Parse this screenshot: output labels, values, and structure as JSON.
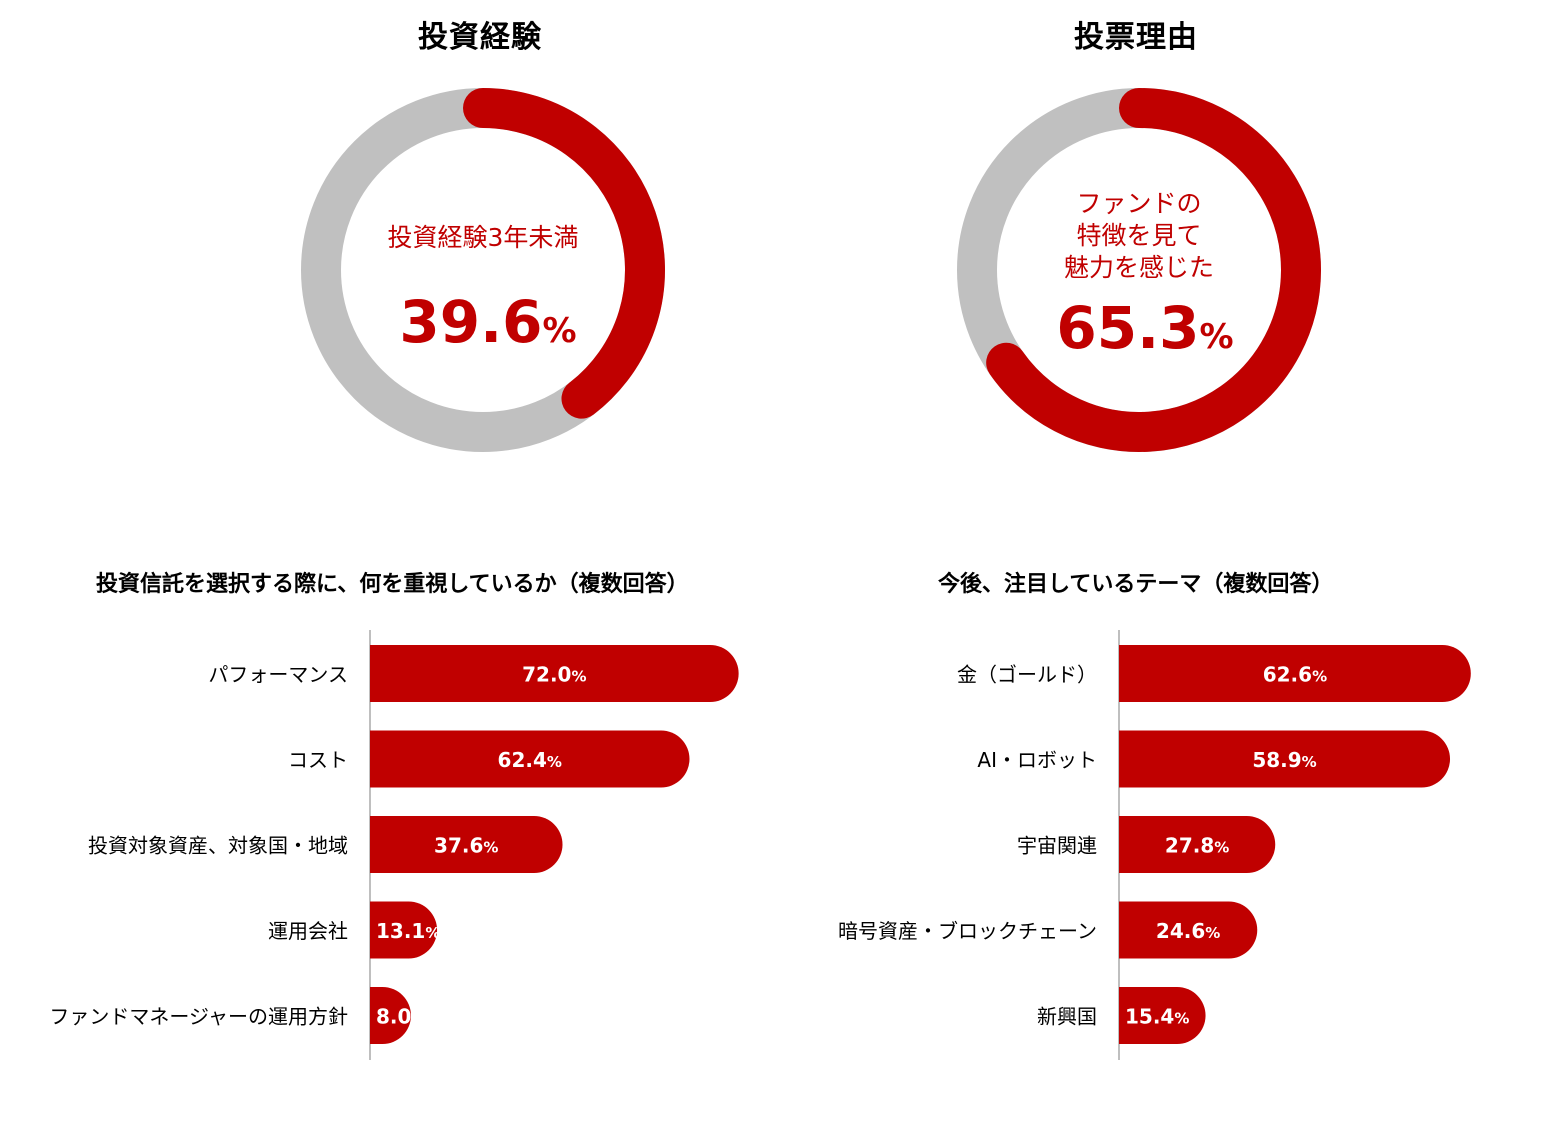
{
  "colors": {
    "accent": "#c00000",
    "remainder": "#c0c0c0",
    "axis": "#bfbfbf",
    "bar_text": "#ffffff"
  },
  "chart_data": [
    {
      "type": "pie",
      "variant": "donut",
      "title": "投資経験",
      "center_label": "投資経験3年未満",
      "value_text": "39.6",
      "unit": "%",
      "slices": [
        {
          "label": "投資経験3年未満",
          "value": 39.6,
          "color": "#c00000"
        },
        {
          "label": "",
          "value": 60.4,
          "color": "#c0c0c0"
        }
      ]
    },
    {
      "type": "pie",
      "variant": "donut",
      "title": "投票理由",
      "center_label": "ファンドの\n特徴を見て\n魅力を感じた",
      "value_text": "65.3",
      "unit": "%",
      "slices": [
        {
          "label": "ファンドの特徴を見て魅力を感じた",
          "value": 65.3,
          "color": "#c00000"
        },
        {
          "label": "",
          "value": 34.7,
          "color": "#c0c0c0"
        }
      ]
    },
    {
      "type": "bar",
      "orientation": "horizontal",
      "title": "投資信託を選択する際に、何を重視しているか（複数回答）",
      "categories": [
        "パフォーマンス",
        "コスト",
        "投資対象資産、対象国・地域",
        "運用会社",
        "ファンドマネージャーの運用方針"
      ],
      "values": [
        72.0,
        62.4,
        37.6,
        13.1,
        8.0
      ],
      "value_labels": [
        "72.0",
        "62.4",
        "37.6",
        "13.1",
        "8.0"
      ],
      "unit": "%",
      "xlim": [
        0,
        100
      ]
    },
    {
      "type": "bar",
      "orientation": "horizontal",
      "title": "今後、注目しているテーマ（複数回答）",
      "categories": [
        "金（ゴールド）",
        "AI・ロボット",
        "宇宙関連",
        "暗号資産・ブロックチェーン",
        "新興国"
      ],
      "values": [
        62.6,
        58.9,
        27.8,
        24.6,
        15.4
      ],
      "value_labels": [
        "62.6",
        "58.9",
        "27.8",
        "24.6",
        "15.4"
      ],
      "unit": "%",
      "xlim": [
        0,
        100
      ]
    }
  ]
}
